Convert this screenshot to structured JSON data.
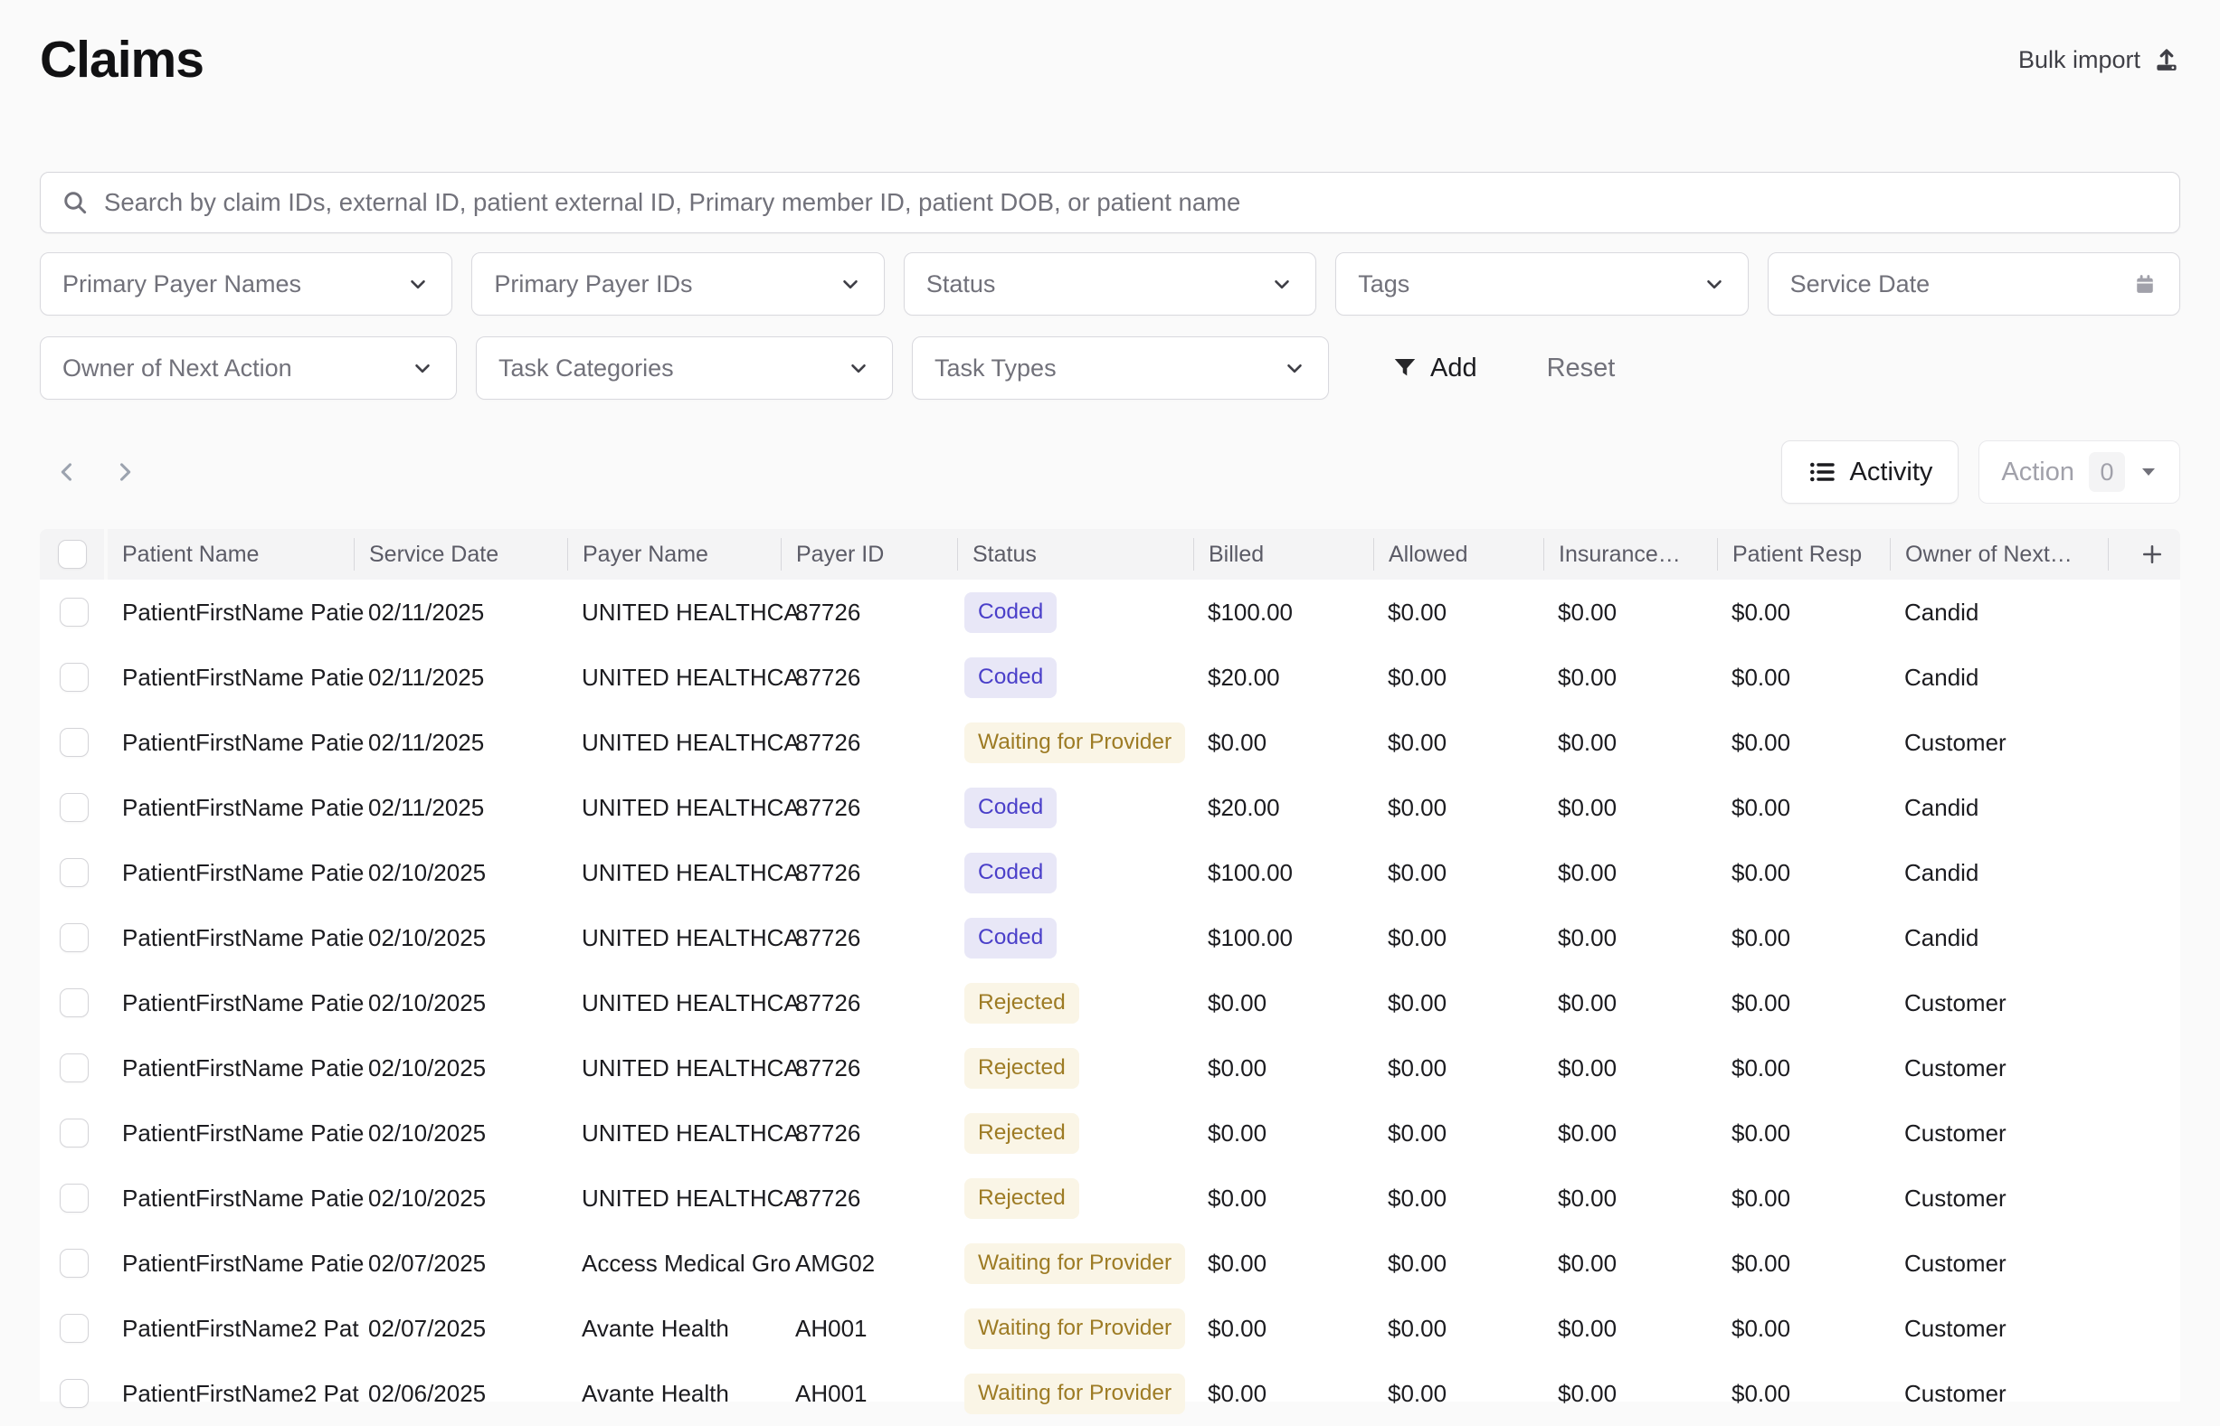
{
  "page": {
    "title": "Claims"
  },
  "header": {
    "bulk_import_label": "Bulk import"
  },
  "search": {
    "placeholder": "Search by claim IDs, external ID, patient external ID, Primary member ID, patient DOB, or patient name"
  },
  "filters": {
    "row1": [
      {
        "label": "Primary Payer Names",
        "icon": "chevron-down"
      },
      {
        "label": "Primary Payer IDs",
        "icon": "chevron-down"
      },
      {
        "label": "Status",
        "icon": "chevron-down"
      },
      {
        "label": "Tags",
        "icon": "chevron-down"
      },
      {
        "label": "Service Date",
        "icon": "calendar"
      }
    ],
    "row2": [
      {
        "label": "Owner of Next Action",
        "icon": "chevron-down"
      },
      {
        "label": "Task Categories",
        "icon": "chevron-down"
      },
      {
        "label": "Task Types",
        "icon": "chevron-down"
      }
    ],
    "add_label": "Add",
    "reset_label": "Reset"
  },
  "toolbar": {
    "activity_label": "Activity",
    "action_label": "Action",
    "action_count": "0"
  },
  "table": {
    "columns": [
      "Patient Name",
      "Service Date",
      "Payer Name",
      "Payer ID",
      "Status",
      "Billed",
      "Allowed",
      "Insurance…",
      "Patient Resp",
      "Owner of Next…"
    ],
    "rows": [
      {
        "patient": "PatientFirstName Patie",
        "service_date": "02/11/2025",
        "payer_name": "UNITED HEALTHCA",
        "payer_id": "87726",
        "status": "Coded",
        "variant": "indigo",
        "billed": "$100.00",
        "allowed": "$0.00",
        "insurance": "$0.00",
        "patient_resp": "$0.00",
        "owner": "Candid"
      },
      {
        "patient": "PatientFirstName Patie",
        "service_date": "02/11/2025",
        "payer_name": "UNITED HEALTHCA",
        "payer_id": "87726",
        "status": "Coded",
        "variant": "indigo",
        "billed": "$20.00",
        "allowed": "$0.00",
        "insurance": "$0.00",
        "patient_resp": "$0.00",
        "owner": "Candid"
      },
      {
        "patient": "PatientFirstName Patie",
        "service_date": "02/11/2025",
        "payer_name": "UNITED HEALTHCA",
        "payer_id": "87726",
        "status": "Waiting for Provider",
        "variant": "gold",
        "billed": "$0.00",
        "allowed": "$0.00",
        "insurance": "$0.00",
        "patient_resp": "$0.00",
        "owner": "Customer"
      },
      {
        "patient": "PatientFirstName Patie",
        "service_date": "02/11/2025",
        "payer_name": "UNITED HEALTHCA",
        "payer_id": "87726",
        "status": "Coded",
        "variant": "indigo",
        "billed": "$20.00",
        "allowed": "$0.00",
        "insurance": "$0.00",
        "patient_resp": "$0.00",
        "owner": "Candid"
      },
      {
        "patient": "PatientFirstName Patie",
        "service_date": "02/10/2025",
        "payer_name": "UNITED HEALTHCA",
        "payer_id": "87726",
        "status": "Coded",
        "variant": "indigo",
        "billed": "$100.00",
        "allowed": "$0.00",
        "insurance": "$0.00",
        "patient_resp": "$0.00",
        "owner": "Candid"
      },
      {
        "patient": "PatientFirstName Patie",
        "service_date": "02/10/2025",
        "payer_name": "UNITED HEALTHCA",
        "payer_id": "87726",
        "status": "Coded",
        "variant": "indigo",
        "billed": "$100.00",
        "allowed": "$0.00",
        "insurance": "$0.00",
        "patient_resp": "$0.00",
        "owner": "Candid"
      },
      {
        "patient": "PatientFirstName Patie",
        "service_date": "02/10/2025",
        "payer_name": "UNITED HEALTHCA",
        "payer_id": "87726",
        "status": "Rejected",
        "variant": "gold",
        "billed": "$0.00",
        "allowed": "$0.00",
        "insurance": "$0.00",
        "patient_resp": "$0.00",
        "owner": "Customer"
      },
      {
        "patient": "PatientFirstName Patie",
        "service_date": "02/10/2025",
        "payer_name": "UNITED HEALTHCA",
        "payer_id": "87726",
        "status": "Rejected",
        "variant": "gold",
        "billed": "$0.00",
        "allowed": "$0.00",
        "insurance": "$0.00",
        "patient_resp": "$0.00",
        "owner": "Customer"
      },
      {
        "patient": "PatientFirstName Patie",
        "service_date": "02/10/2025",
        "payer_name": "UNITED HEALTHCA",
        "payer_id": "87726",
        "status": "Rejected",
        "variant": "gold",
        "billed": "$0.00",
        "allowed": "$0.00",
        "insurance": "$0.00",
        "patient_resp": "$0.00",
        "owner": "Customer"
      },
      {
        "patient": "PatientFirstName Patie",
        "service_date": "02/10/2025",
        "payer_name": "UNITED HEALTHCA",
        "payer_id": "87726",
        "status": "Rejected",
        "variant": "gold",
        "billed": "$0.00",
        "allowed": "$0.00",
        "insurance": "$0.00",
        "patient_resp": "$0.00",
        "owner": "Customer"
      },
      {
        "patient": "PatientFirstName Patie",
        "service_date": "02/07/2025",
        "payer_name": "Access Medical Gro",
        "payer_id": "AMG02",
        "status": "Waiting for Provider",
        "variant": "gold",
        "billed": "$0.00",
        "allowed": "$0.00",
        "insurance": "$0.00",
        "patient_resp": "$0.00",
        "owner": "Customer"
      },
      {
        "patient": "PatientFirstName2 Pat",
        "service_date": "02/07/2025",
        "payer_name": "Avante Health",
        "payer_id": "AH001",
        "status": "Waiting for Provider",
        "variant": "gold",
        "billed": "$0.00",
        "allowed": "$0.00",
        "insurance": "$0.00",
        "patient_resp": "$0.00",
        "owner": "Customer"
      },
      {
        "patient": "PatientFirstName2 Pat",
        "service_date": "02/06/2025",
        "payer_name": "Avante Health",
        "payer_id": "AH001",
        "status": "Waiting for Provider",
        "variant": "gold",
        "billed": "$0.00",
        "allowed": "$0.00",
        "insurance": "$0.00",
        "patient_resp": "$0.00",
        "owner": "Customer"
      }
    ]
  },
  "colors": {
    "page_bg": "#fafafa",
    "status_coded_text": "#4a3fc9",
    "status_coded_bg": "#e8e7f7",
    "status_gold_text": "#9d7b24",
    "status_gold_bg": "#faf5e6",
    "muted_text": "#71717a",
    "body_text": "#1b1b1f"
  }
}
